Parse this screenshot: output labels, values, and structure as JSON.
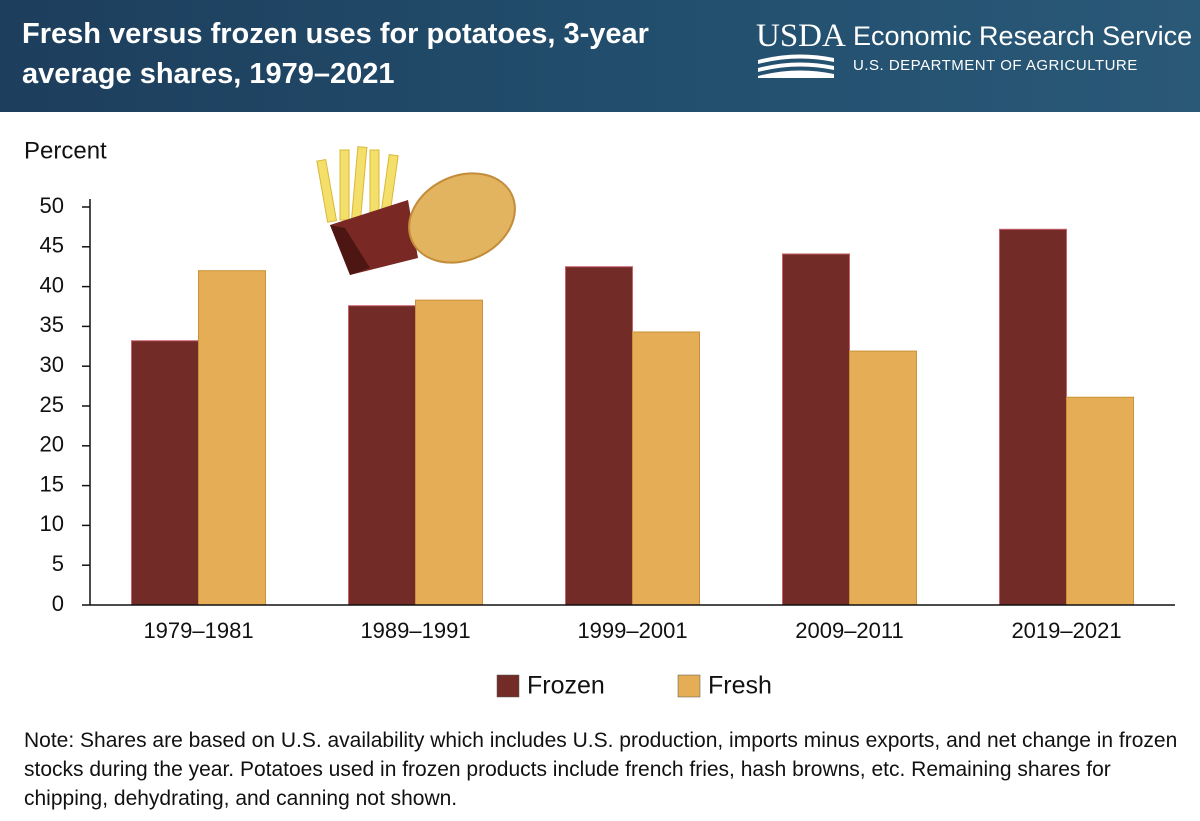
{
  "chart_data": {
    "type": "bar",
    "title": "Fresh versus frozen uses for potatoes, 3-year average shares, 1979–2021",
    "logo_text": "USDA",
    "agency": "Economic Research Service",
    "department": "U.S. DEPARTMENT OF AGRICULTURE",
    "ylabel": "Percent",
    "categories": [
      "1979–1981",
      "1989–1991",
      "1999–2001",
      "2009–2011",
      "2019–2021"
    ],
    "series": [
      {
        "name": "Frozen",
        "color": "#722b26",
        "values": [
          33.2,
          37.6,
          42.5,
          44.1,
          47.2
        ]
      },
      {
        "name": "Fresh",
        "color": "#e5ad55",
        "values": [
          42.0,
          38.3,
          34.3,
          31.9,
          26.1
        ]
      }
    ],
    "ylim": [
      0,
      50
    ],
    "yticks": [
      0,
      5,
      10,
      15,
      20,
      25,
      30,
      35,
      40,
      45,
      50
    ],
    "grid": false,
    "note": "Note: Shares are based on U.S. availability which includes U.S. production, imports minus exports, and net change in frozen stocks during the year. Potatoes used in frozen products include french fries, hash browns, etc. Remaining shares for chipping, dehydrating, and canning not shown."
  }
}
